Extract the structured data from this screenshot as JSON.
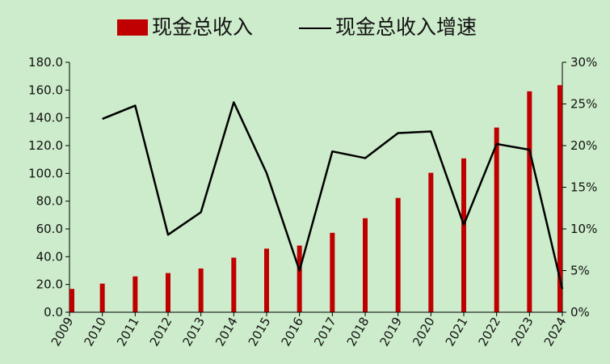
{
  "chart_data": {
    "type": "bar",
    "title": "",
    "xlabel": "",
    "ylabel": "",
    "categories": [
      "2009",
      "2010",
      "2011",
      "2012",
      "2013",
      "2014",
      "2015",
      "2016",
      "2017",
      "2018",
      "2019",
      "2020",
      "2021",
      "2022",
      "2023",
      "2024"
    ],
    "series": [
      {
        "name": "现金总收入",
        "type": "bar",
        "axis": "left",
        "color": "#c00000",
        "values": [
          16.8,
          20.6,
          25.8,
          28.2,
          31.5,
          39.3,
          45.8,
          48.0,
          57.2,
          67.7,
          82.3,
          100.4,
          110.8,
          133.0,
          159.1,
          163.5
        ]
      },
      {
        "name": "现金总收入增速",
        "type": "line",
        "axis": "right",
        "color": "#000000",
        "values": [
          null,
          0.232,
          0.248,
          0.093,
          0.12,
          0.252,
          0.167,
          0.05,
          0.193,
          0.185,
          0.215,
          0.217,
          0.105,
          0.202,
          0.195,
          0.028
        ]
      }
    ],
    "ylim": [
      0,
      180
    ],
    "yticks": [
      "0.0",
      "20.0",
      "40.0",
      "60.0",
      "80.0",
      "100.0",
      "120.0",
      "140.0",
      "160.0",
      "180.0"
    ],
    "y2lim": [
      0,
      0.3
    ],
    "y2ticks": [
      "0%",
      "5%",
      "10%",
      "15%",
      "20%",
      "25%",
      "30%"
    ],
    "legend_position": "top-center",
    "grid": false,
    "background_color": "#cdeccb"
  }
}
